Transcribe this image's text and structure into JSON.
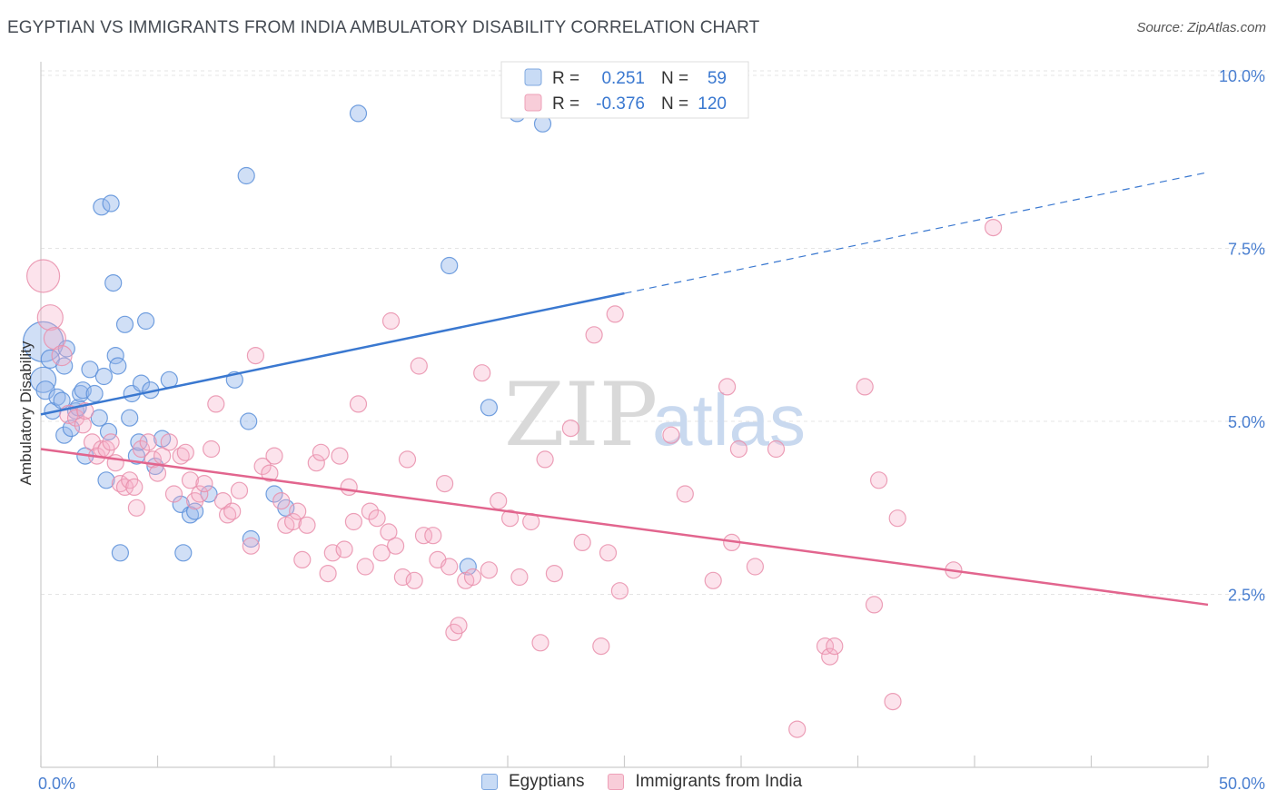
{
  "title": "EGYPTIAN VS IMMIGRANTS FROM INDIA AMBULATORY DISABILITY CORRELATION CHART",
  "source": "Source: ZipAtlas.com",
  "watermark": {
    "zip": "ZIP",
    "atlas": "atlas"
  },
  "legend": {
    "r_label": "R =",
    "n_label": "N =",
    "rows": [
      {
        "r": "0.251",
        "n": "59",
        "color": "#7fa8e0",
        "fill": "#c8dbf5"
      },
      {
        "r": "-0.376",
        "n": "120",
        "color": "#eea0b8",
        "fill": "#f8cdd9"
      }
    ]
  },
  "bottom_legend": [
    {
      "label": "Egyptians",
      "color": "#7fa8e0",
      "fill": "#c8dbf5"
    },
    {
      "label": "Immigrants from India",
      "color": "#eea0b8",
      "fill": "#f8cdd9"
    }
  ],
  "chart_data": {
    "type": "scatter",
    "ylabel": "Ambulatory Disability",
    "xlim": [
      0,
      50
    ],
    "ylim": [
      0,
      10.5
    ],
    "x_tick_labels": [
      "0.0%",
      "50.0%"
    ],
    "y_ticks": [
      {
        "value": 2.5,
        "label": "2.5%"
      },
      {
        "value": 5.0,
        "label": "5.0%"
      },
      {
        "value": 7.5,
        "label": "7.5%"
      },
      {
        "value": 10.0,
        "label": "10.0%"
      }
    ],
    "grid": true,
    "series": [
      {
        "name": "Egyptians",
        "color": "#5b8fd9",
        "fill": "rgba(150,185,235,0.45)",
        "trend": {
          "x0": 0.0,
          "y0": 5.1,
          "x1": 25.0,
          "y1": 6.85,
          "x_dash_end": 50.0,
          "y_dash_end": 8.6,
          "color": "#3a78d0"
        },
        "points": [
          [
            0.1,
            6.15,
            22
          ],
          [
            0.1,
            5.6,
            14
          ],
          [
            0.2,
            5.45,
            10
          ],
          [
            0.4,
            5.9,
            10
          ],
          [
            0.5,
            5.15,
            9
          ],
          [
            0.7,
            5.35,
            9
          ],
          [
            0.9,
            5.3,
            9
          ],
          [
            1.0,
            5.8,
            9
          ],
          [
            1.0,
            4.8,
            9
          ],
          [
            1.1,
            6.05,
            9
          ],
          [
            1.3,
            4.9,
            9
          ],
          [
            1.5,
            5.15,
            9
          ],
          [
            1.6,
            5.2,
            9
          ],
          [
            1.7,
            5.4,
            9
          ],
          [
            1.8,
            5.45,
            9
          ],
          [
            1.9,
            4.5,
            9
          ],
          [
            2.1,
            5.75,
            9
          ],
          [
            2.3,
            5.4,
            9
          ],
          [
            2.5,
            5.05,
            9
          ],
          [
            2.6,
            8.1,
            9
          ],
          [
            2.7,
            5.65,
            9
          ],
          [
            2.8,
            4.15,
            9
          ],
          [
            2.9,
            4.85,
            9
          ],
          [
            3.0,
            8.15,
            9
          ],
          [
            3.1,
            7.0,
            9
          ],
          [
            3.2,
            5.95,
            9
          ],
          [
            3.3,
            5.8,
            9
          ],
          [
            3.4,
            3.1,
            9
          ],
          [
            3.6,
            6.4,
            9
          ],
          [
            3.8,
            5.05,
            9
          ],
          [
            3.9,
            5.4,
            9
          ],
          [
            4.1,
            4.5,
            9
          ],
          [
            4.2,
            4.7,
            9
          ],
          [
            4.3,
            5.55,
            9
          ],
          [
            4.5,
            6.45,
            9
          ],
          [
            4.7,
            5.45,
            9
          ],
          [
            4.9,
            4.35,
            9
          ],
          [
            5.2,
            4.75,
            9
          ],
          [
            5.5,
            5.6,
            9
          ],
          [
            6.0,
            3.8,
            9
          ],
          [
            6.1,
            3.1,
            9
          ],
          [
            6.4,
            3.65,
            9
          ],
          [
            6.6,
            3.7,
            9
          ],
          [
            7.2,
            3.95,
            9
          ],
          [
            8.3,
            5.6,
            9
          ],
          [
            8.8,
            8.55,
            9
          ],
          [
            8.9,
            5.0,
            9
          ],
          [
            9.0,
            3.3,
            9
          ],
          [
            10.0,
            3.95,
            9
          ],
          [
            10.5,
            3.75,
            9
          ],
          [
            13.6,
            9.45,
            9
          ],
          [
            17.5,
            7.25,
            9
          ],
          [
            18.3,
            2.9,
            9
          ],
          [
            19.2,
            5.2,
            9
          ],
          [
            20.4,
            9.45,
            9
          ],
          [
            21.5,
            9.3,
            9
          ]
        ]
      },
      {
        "name": "Immigrants from India",
        "color": "#e98fab",
        "fill": "rgba(245,175,200,0.35)",
        "trend": {
          "x0": 0.0,
          "y0": 4.6,
          "x1": 50.0,
          "y1": 2.35,
          "color": "#e2658e"
        },
        "points": [
          [
            0.1,
            7.1,
            18
          ],
          [
            0.4,
            6.5,
            14
          ],
          [
            0.6,
            6.2,
            12
          ],
          [
            0.9,
            5.95,
            11
          ],
          [
            1.2,
            5.1,
            10
          ],
          [
            1.5,
            5.05,
            9
          ],
          [
            1.8,
            4.95,
            9
          ],
          [
            1.9,
            5.15,
            9
          ],
          [
            2.2,
            4.7,
            9
          ],
          [
            2.4,
            4.5,
            9
          ],
          [
            2.6,
            4.6,
            9
          ],
          [
            2.8,
            4.6,
            9
          ],
          [
            3.0,
            4.7,
            9
          ],
          [
            3.2,
            4.4,
            9
          ],
          [
            3.4,
            4.1,
            9
          ],
          [
            3.6,
            4.05,
            9
          ],
          [
            3.8,
            4.15,
            9
          ],
          [
            4.0,
            4.05,
            9
          ],
          [
            4.1,
            3.75,
            9
          ],
          [
            4.3,
            4.6,
            9
          ],
          [
            4.6,
            4.7,
            9
          ],
          [
            4.8,
            4.45,
            9
          ],
          [
            5.0,
            4.25,
            9
          ],
          [
            5.2,
            4.5,
            9
          ],
          [
            5.5,
            4.7,
            9
          ],
          [
            5.7,
            3.95,
            9
          ],
          [
            6.0,
            4.5,
            9
          ],
          [
            6.2,
            4.55,
            9
          ],
          [
            6.4,
            4.15,
            9
          ],
          [
            6.6,
            3.85,
            9
          ],
          [
            6.8,
            3.95,
            9
          ],
          [
            7.0,
            4.1,
            9
          ],
          [
            7.3,
            4.6,
            9
          ],
          [
            7.5,
            5.25,
            9
          ],
          [
            7.8,
            3.85,
            9
          ],
          [
            8.0,
            3.65,
            9
          ],
          [
            8.2,
            3.7,
            9
          ],
          [
            8.5,
            4.0,
            9
          ],
          [
            9.0,
            3.2,
            9
          ],
          [
            9.2,
            5.95,
            9
          ],
          [
            9.5,
            4.35,
            9
          ],
          [
            9.8,
            4.25,
            9
          ],
          [
            10.0,
            4.5,
            9
          ],
          [
            10.3,
            3.85,
            9
          ],
          [
            10.5,
            3.5,
            9
          ],
          [
            10.8,
            3.55,
            9
          ],
          [
            11.0,
            3.7,
            9
          ],
          [
            11.2,
            3.0,
            9
          ],
          [
            11.4,
            3.5,
            9
          ],
          [
            11.8,
            4.4,
            9
          ],
          [
            12.0,
            4.55,
            9
          ],
          [
            12.3,
            2.8,
            9
          ],
          [
            12.5,
            3.1,
            9
          ],
          [
            12.8,
            4.5,
            9
          ],
          [
            13.0,
            3.15,
            9
          ],
          [
            13.2,
            4.05,
            9
          ],
          [
            13.4,
            3.55,
            9
          ],
          [
            13.6,
            5.25,
            9
          ],
          [
            13.9,
            2.9,
            9
          ],
          [
            14.1,
            3.7,
            9
          ],
          [
            14.4,
            3.6,
            9
          ],
          [
            14.6,
            3.1,
            9
          ],
          [
            14.9,
            3.4,
            9
          ],
          [
            15.0,
            6.45,
            9
          ],
          [
            15.2,
            3.2,
            9
          ],
          [
            15.5,
            2.75,
            9
          ],
          [
            15.7,
            4.45,
            9
          ],
          [
            16.0,
            2.7,
            9
          ],
          [
            16.2,
            5.8,
            9
          ],
          [
            16.4,
            3.35,
            9
          ],
          [
            16.8,
            3.35,
            9
          ],
          [
            17.0,
            3.0,
            9
          ],
          [
            17.3,
            4.1,
            9
          ],
          [
            17.5,
            2.9,
            9
          ],
          [
            17.7,
            1.95,
            9
          ],
          [
            17.9,
            2.05,
            9
          ],
          [
            18.2,
            2.7,
            9
          ],
          [
            18.5,
            2.75,
            9
          ],
          [
            18.9,
            5.7,
            9
          ],
          [
            19.2,
            2.85,
            9
          ],
          [
            19.6,
            3.85,
            9
          ],
          [
            20.1,
            3.6,
            9
          ],
          [
            20.5,
            2.75,
            9
          ],
          [
            21.0,
            3.55,
            9
          ],
          [
            21.4,
            1.8,
            9
          ],
          [
            21.6,
            4.45,
            9
          ],
          [
            22.0,
            2.8,
            9
          ],
          [
            22.7,
            4.9,
            9
          ],
          [
            23.2,
            3.25,
            9
          ],
          [
            23.7,
            6.25,
            9
          ],
          [
            24.0,
            1.75,
            9
          ],
          [
            24.3,
            3.1,
            9
          ],
          [
            24.6,
            6.55,
            9
          ],
          [
            24.8,
            2.55,
            9
          ],
          [
            27.0,
            4.8,
            9
          ],
          [
            27.6,
            3.95,
            9
          ],
          [
            28.8,
            2.7,
            9
          ],
          [
            29.4,
            5.5,
            9
          ],
          [
            29.6,
            3.25,
            9
          ],
          [
            29.9,
            4.6,
            9
          ],
          [
            30.6,
            2.9,
            9
          ],
          [
            31.5,
            4.6,
            9
          ],
          [
            32.4,
            0.55,
            9
          ],
          [
            33.6,
            1.75,
            9
          ],
          [
            33.8,
            1.6,
            9
          ],
          [
            34.0,
            1.75,
            9
          ],
          [
            35.3,
            5.5,
            9
          ],
          [
            35.7,
            2.35,
            9
          ],
          [
            35.9,
            4.15,
            9
          ],
          [
            36.5,
            0.95,
            9
          ],
          [
            36.7,
            3.6,
            9
          ],
          [
            39.1,
            2.85,
            9
          ],
          [
            40.8,
            7.8,
            9
          ]
        ]
      }
    ]
  }
}
